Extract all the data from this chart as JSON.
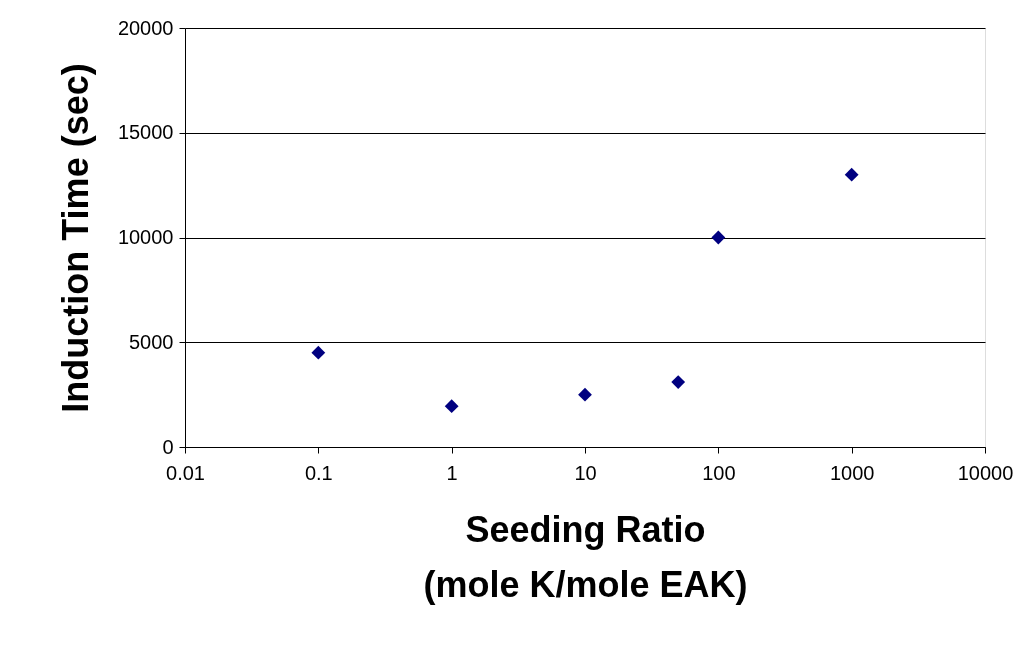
{
  "chart_data": {
    "type": "scatter",
    "xlabel": "Seeding Ratio\n(mole K/mole EAK)",
    "ylabel": "Induction Time (sec)",
    "x": [
      0.1,
      1,
      10,
      50,
      100,
      1000
    ],
    "series": [
      {
        "color": "#000080",
        "values": [
          4500,
          1950,
          2500,
          3100,
          10000,
          13000
        ]
      }
    ],
    "xlim": [
      0.01,
      10000
    ],
    "xticks": [
      0.01,
      0.1,
      1,
      10,
      100,
      1000,
      10000
    ],
    "ylim": [
      0,
      20000
    ],
    "yticks": [
      0,
      5000,
      10000,
      15000,
      20000
    ],
    "log": "x",
    "grid": "y",
    "marker": "diamond"
  }
}
